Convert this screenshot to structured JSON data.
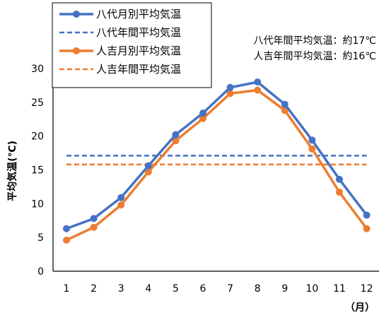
{
  "chart_data": {
    "type": "line",
    "x": [
      1,
      2,
      3,
      4,
      5,
      6,
      7,
      8,
      9,
      10,
      11,
      12
    ],
    "x_tick_labels": [
      "1",
      "2",
      "3",
      "4",
      "5",
      "6",
      "7",
      "8",
      "9",
      "10",
      "11",
      "12"
    ],
    "x_unit": "（月）",
    "ylabel": "平均気温(℃)",
    "ylim": [
      0,
      30
    ],
    "y_ticks": [
      0,
      5,
      10,
      15,
      20,
      25,
      30
    ],
    "grid": false,
    "legend_position": "top-left",
    "series": [
      {
        "name": "八代月別平均気温",
        "style": "solid-marker",
        "color": "#4472C4",
        "values": [
          6.3,
          7.8,
          10.9,
          15.6,
          20.2,
          23.4,
          27.2,
          28.0,
          24.7,
          19.4,
          13.6,
          8.3
        ]
      },
      {
        "name": "八代年間平均気温",
        "style": "dashed",
        "color": "#4472C4",
        "values": [
          17.1,
          17.1,
          17.1,
          17.1,
          17.1,
          17.1,
          17.1,
          17.1,
          17.1,
          17.1,
          17.1,
          17.1
        ]
      },
      {
        "name": "人吉月別平均気温",
        "style": "solid-marker",
        "color": "#ED7D31",
        "values": [
          4.6,
          6.5,
          9.8,
          14.7,
          19.3,
          22.6,
          26.3,
          26.8,
          23.8,
          18.1,
          11.7,
          6.3
        ]
      },
      {
        "name": "人吉年間平均気温",
        "style": "dashed",
        "color": "#ED7D31",
        "values": [
          15.8,
          15.8,
          15.8,
          15.8,
          15.8,
          15.8,
          15.8,
          15.8,
          15.8,
          15.8,
          15.8,
          15.8
        ]
      }
    ],
    "annotations": [
      "八代年間平均気温：約17℃",
      "人吉年間平均気温：約16℃"
    ]
  }
}
